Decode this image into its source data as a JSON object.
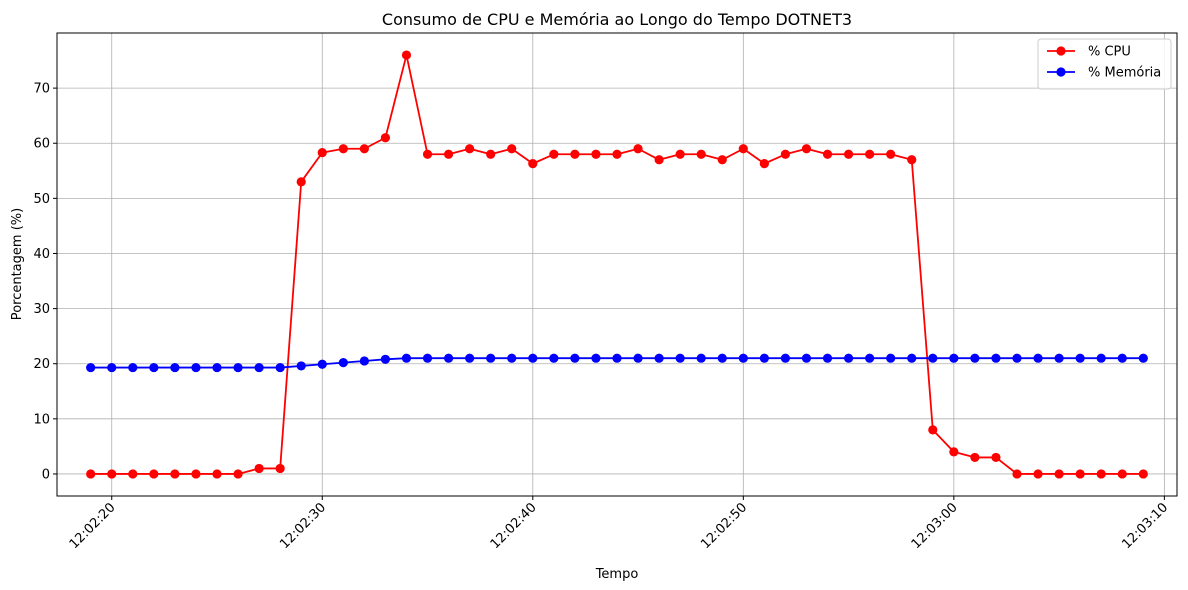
{
  "chart_data": {
    "type": "line",
    "title": "Consumo de CPU e Memória ao Longo do Tempo DOTNET3",
    "xlabel": "Tempo",
    "ylabel": "Porcentagem (%)",
    "x_start": "12:02:19",
    "x_step_seconds": 1,
    "xticks": [
      "12:02:20",
      "12:02:30",
      "12:02:40",
      "12:02:50",
      "12:03:00",
      "12:03:10"
    ],
    "yticks": [
      0,
      10,
      20,
      30,
      40,
      50,
      60,
      70
    ],
    "ylim": [
      -4,
      80
    ],
    "xlim": [
      "12:02:17.4",
      "12:03:10.6"
    ],
    "grid": true,
    "legend_position": "top-right",
    "series": [
      {
        "name": "% CPU",
        "color": "#ff0000",
        "values": [
          0,
          0,
          0,
          0,
          0,
          0,
          0,
          0,
          1,
          1,
          53,
          58.3,
          59,
          59,
          61,
          76,
          58,
          58,
          59,
          58,
          59,
          56.3,
          58,
          58,
          58,
          58,
          59,
          57,
          58,
          58,
          57,
          59,
          56.3,
          58,
          59,
          58,
          58,
          58,
          58,
          57,
          8,
          4,
          3,
          3,
          0,
          0,
          0,
          0,
          0,
          0,
          0
        ]
      },
      {
        "name": "% Memória",
        "color": "#0000ff",
        "values": [
          19.3,
          19.3,
          19.3,
          19.3,
          19.3,
          19.3,
          19.3,
          19.3,
          19.3,
          19.3,
          19.6,
          19.9,
          20.2,
          20.5,
          20.8,
          21,
          21,
          21,
          21,
          21,
          21,
          21,
          21,
          21,
          21,
          21,
          21,
          21,
          21,
          21,
          21,
          21,
          21,
          21,
          21,
          21,
          21,
          21,
          21,
          21,
          21,
          21,
          21,
          21,
          21,
          21,
          21,
          21,
          21,
          21,
          21
        ]
      }
    ]
  }
}
